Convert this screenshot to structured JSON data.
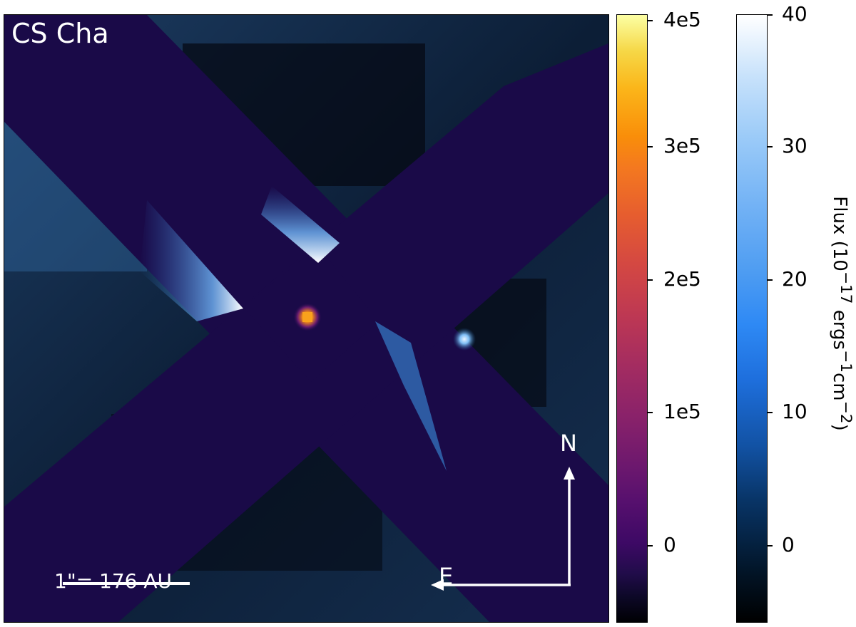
{
  "image": {
    "object_name": "CS Cha",
    "scale_bar_label": "1\"= 176 AU",
    "compass": {
      "north": "N",
      "east": "E"
    }
  },
  "colorbars": {
    "star": {
      "colormap": "inferno",
      "ticks": [
        "4e5",
        "3e5",
        "2e5",
        "1e5",
        "0"
      ]
    },
    "flux": {
      "colormap": "blue-white",
      "ticks": [
        "40",
        "30",
        "20",
        "10",
        "0"
      ],
      "title_prefix": "Flux (10",
      "title_exp1": "−17",
      "title_mid": " ergs",
      "title_exp2": "−1",
      "title_unit": "cm",
      "title_exp3": "−2",
      "title_suffix": ")"
    }
  },
  "colors": {
    "mask": "#1a0a48",
    "star": "#f9a21c",
    "companion": "#a8d8ff"
  }
}
